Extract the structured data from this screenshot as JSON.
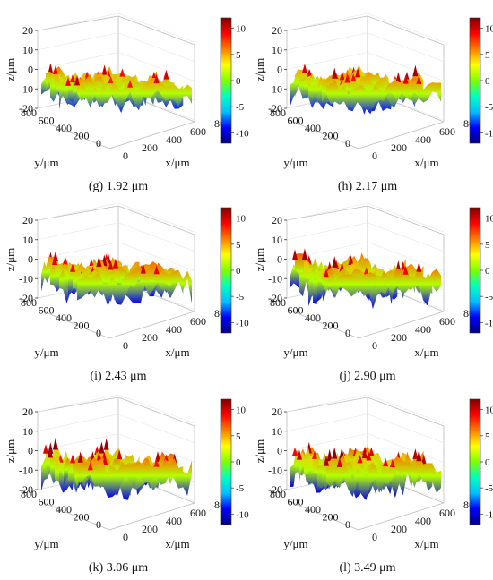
{
  "chart_data": [
    {
      "type": "surface",
      "panel_label": "(g) 1.92 μm",
      "zlabel": "z/μm",
      "xlabel": "x/μm",
      "ylabel": "y/μm",
      "z_ticks": [
        20,
        10,
        0,
        -10,
        -20
      ],
      "x_ticks": [
        0,
        200,
        400,
        600,
        800
      ],
      "y_ticks": [
        800,
        600,
        400,
        200,
        0
      ],
      "zlim": [
        -20,
        20
      ],
      "xlim": [
        0,
        800
      ],
      "ylim": [
        0,
        800
      ],
      "colorbar": {
        "ticks": [
          10,
          5,
          0,
          -5,
          -10
        ],
        "range": [
          -12,
          12
        ]
      },
      "roughness": 1.92
    },
    {
      "type": "surface",
      "panel_label": "(h) 2.17 μm",
      "zlabel": "z/μm",
      "xlabel": "x/μm",
      "ylabel": "y/μm",
      "z_ticks": [
        20,
        10,
        0,
        -10,
        -20
      ],
      "x_ticks": [
        0,
        200,
        400,
        600,
        800
      ],
      "y_ticks": [
        800,
        600,
        400,
        200,
        0
      ],
      "zlim": [
        -20,
        20
      ],
      "xlim": [
        0,
        800
      ],
      "ylim": [
        0,
        800
      ],
      "colorbar": {
        "ticks": [
          10,
          5,
          0,
          -5,
          -10
        ],
        "range": [
          -12,
          12
        ]
      },
      "roughness": 2.17
    },
    {
      "type": "surface",
      "panel_label": "(i) 2.43 μm",
      "zlabel": "z/μm",
      "xlabel": "x/μm",
      "ylabel": "y/μm",
      "z_ticks": [
        20,
        10,
        0,
        -10,
        -20
      ],
      "x_ticks": [
        0,
        200,
        400,
        600,
        800
      ],
      "y_ticks": [
        800,
        600,
        400,
        200,
        0
      ],
      "zlim": [
        -20,
        20
      ],
      "xlim": [
        0,
        800
      ],
      "ylim": [
        0,
        800
      ],
      "colorbar": {
        "ticks": [
          10,
          5,
          0,
          -5,
          -10
        ],
        "range": [
          -12,
          12
        ]
      },
      "roughness": 2.43
    },
    {
      "type": "surface",
      "panel_label": "(j) 2.90 μm",
      "zlabel": "z/μm",
      "xlabel": "x/μm",
      "ylabel": "y/μm",
      "z_ticks": [
        20,
        10,
        0,
        -10,
        -20
      ],
      "x_ticks": [
        0,
        200,
        400,
        600,
        800
      ],
      "y_ticks": [
        800,
        600,
        400,
        200,
        0
      ],
      "zlim": [
        -20,
        20
      ],
      "xlim": [
        0,
        800
      ],
      "ylim": [
        0,
        800
      ],
      "colorbar": {
        "ticks": [
          10,
          5,
          0,
          -5,
          -10
        ],
        "range": [
          -12,
          12
        ]
      },
      "roughness": 2.9
    },
    {
      "type": "surface",
      "panel_label": "(k) 3.06 μm",
      "zlabel": "z/μm",
      "xlabel": "x/μm",
      "ylabel": "y/μm",
      "z_ticks": [
        20,
        10,
        0,
        -10,
        -20
      ],
      "x_ticks": [
        0,
        200,
        400,
        600,
        800
      ],
      "y_ticks": [
        800,
        600,
        400,
        200,
        0
      ],
      "zlim": [
        -20,
        20
      ],
      "xlim": [
        0,
        800
      ],
      "ylim": [
        0,
        800
      ],
      "colorbar": {
        "ticks": [
          10,
          5,
          0,
          -5,
          -10
        ],
        "range": [
          -12,
          12
        ]
      },
      "roughness": 3.06
    },
    {
      "type": "surface",
      "panel_label": "(l) 3.49 μm",
      "zlabel": "z/μm",
      "xlabel": "x/μm",
      "ylabel": "y/μm",
      "z_ticks": [
        20,
        10,
        0,
        -10,
        -20
      ],
      "x_ticks": [
        0,
        200,
        400,
        600,
        800
      ],
      "y_ticks": [
        800,
        600,
        400,
        200,
        0
      ],
      "zlim": [
        -20,
        20
      ],
      "xlim": [
        0,
        800
      ],
      "ylim": [
        0,
        800
      ],
      "colorbar": {
        "ticks": [
          10,
          5,
          0,
          -5,
          -10
        ],
        "range": [
          -12,
          12
        ]
      },
      "roughness": 3.49
    }
  ],
  "colormap": [
    "#00007f",
    "#0000ff",
    "#00bfff",
    "#00ffbf",
    "#7fff00",
    "#ffff00",
    "#ff7f00",
    "#ff0000",
    "#7f0000"
  ]
}
